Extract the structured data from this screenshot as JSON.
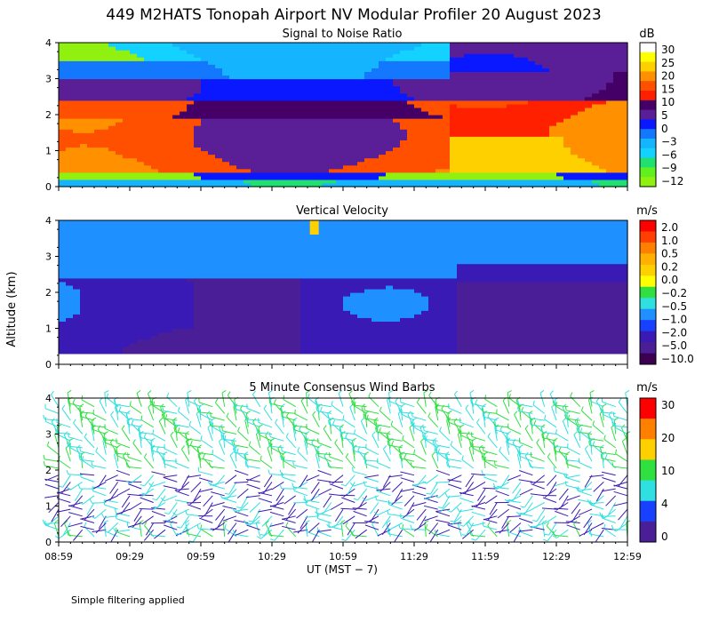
{
  "main_title": "449 M2HATS Tonopah Airport NV Modular Profiler 20 August 2023",
  "ylabel": "Altitude (km)",
  "xlabel": "UT  (MST − 7)",
  "footnote": "Simple filtering applied",
  "x_ticks": [
    "08:59",
    "09:29",
    "09:59",
    "10:29",
    "10:59",
    "11:29",
    "11:59",
    "12:29",
    "12:59"
  ],
  "chart_data": [
    {
      "type": "heatmap",
      "title": "Signal to Noise Ratio",
      "unit": "dB",
      "ylim": [
        0,
        4
      ],
      "y_ticks": [
        "0",
        "1",
        "2",
        "3",
        "4"
      ],
      "colorbar": {
        "labels": [
          "30",
          "25",
          "20",
          "15",
          "10",
          "5",
          "0",
          "−3",
          "−6",
          "−9",
          "−12"
        ],
        "colors": [
          "#ffffff",
          "#ffff00",
          "#ffd000",
          "#ff9000",
          "#ff5000",
          "#ff2000",
          "#440066",
          "#5a1e96",
          "#0a18ff",
          "#1478ff",
          "#14b4ff",
          "#14d2ff",
          "#20e070",
          "#60f020",
          "#90f010"
        ]
      },
      "regions": [
        {
          "t": [
            0,
            120
          ],
          "z": [
            0,
            0.25
          ],
          "value": "-6"
        },
        {
          "t": [
            0,
            120
          ],
          "z": [
            0.25,
            0.45
          ],
          "value": "-12"
        },
        {
          "t": [
            0,
            120
          ],
          "z": [
            0.45,
            2.45
          ],
          "value": "10"
        },
        {
          "t": [
            0,
            120
          ],
          "z": [
            2.45,
            3.3
          ],
          "value": "0"
        },
        {
          "t": [
            0,
            120
          ],
          "z": [
            3.3,
            4.0
          ],
          "value": "-6"
        },
        {
          "t": [
            120,
            240
          ],
          "z": [
            0,
            0.3
          ],
          "value": "-12"
        },
        {
          "t": [
            120,
            240
          ],
          "z": [
            0.45,
            2.35
          ],
          "value": "15"
        },
        {
          "t": [
            120,
            240
          ],
          "z": [
            2.35,
            3.0
          ],
          "value": "0"
        },
        {
          "t": [
            120,
            240
          ],
          "z": [
            3.0,
            4.0
          ],
          "value": "-3"
        }
      ]
    },
    {
      "type": "heatmap",
      "title": "Vertical Velocity",
      "unit": "m/s",
      "ylim": [
        0,
        4
      ],
      "y_ticks": [
        "0",
        "1",
        "2",
        "3",
        "4"
      ],
      "colorbar": {
        "labels": [
          "2.0",
          "1.0",
          "0.5",
          "0.2",
          "0.0",
          "−0.2",
          "−0.5",
          "−1.0",
          "−2.0",
          "−5.0",
          "−10.0"
        ],
        "colors": [
          "#ff0000",
          "#ff4000",
          "#ff8000",
          "#ffb000",
          "#ffd000",
          "#ffff00",
          "#30e040",
          "#30e0e0",
          "#1e90ff",
          "#1840ff",
          "#3a1ab4",
          "#4a1e96",
          "#3c0050"
        ]
      },
      "regions": [
        {
          "t": [
            0,
            140
          ],
          "z": [
            0.3,
            2.5
          ],
          "value": "-2.0"
        },
        {
          "t": [
            0,
            240
          ],
          "z": [
            2.5,
            4.0
          ],
          "value": "-1.0"
        },
        {
          "t": [
            140,
            240
          ],
          "z": [
            0.3,
            2.4
          ],
          "value": "-5.0"
        }
      ]
    },
    {
      "type": "wind_barbs",
      "title": "5 Minute Consensus Wind Barbs",
      "unit": "m/s",
      "ylim": [
        0,
        4
      ],
      "y_ticks": [
        "0",
        "1",
        "2",
        "3",
        "4"
      ],
      "interval_minutes": 5,
      "colorbar": {
        "labels": [
          "30",
          "20",
          "10",
          "4",
          "0"
        ],
        "colors": [
          "#ff0000",
          "#ff8000",
          "#ffd000",
          "#30e040",
          "#30e0e0",
          "#1840ff",
          "#4a1e96"
        ]
      },
      "layers": [
        {
          "z": [
            0.2,
            2.0
          ],
          "speed": 3,
          "direction_deg": 250
        },
        {
          "z": [
            2.0,
            3.9
          ],
          "speed": 10,
          "direction_deg": 315
        }
      ]
    }
  ]
}
